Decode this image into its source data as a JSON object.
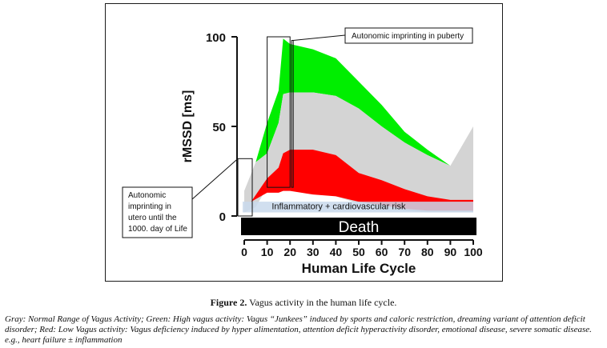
{
  "chart_data": {
    "type": "area",
    "ylabel": "rMSSD [ms]",
    "xlabel": "Human Life Cycle",
    "xlim": [
      0,
      100
    ],
    "ylim": [
      0,
      100
    ],
    "xticks": [
      0,
      10,
      20,
      30,
      40,
      50,
      60,
      70,
      80,
      90,
      100
    ],
    "yticks": [
      0,
      50,
      100
    ],
    "series": [
      {
        "color": "#00ee00",
        "x": [
          0,
          5,
          10,
          15,
          17,
          20,
          30,
          40,
          50,
          60,
          70,
          80,
          90,
          100
        ],
        "upper": [
          14,
          30,
          52,
          70,
          99,
          96,
          93,
          88,
          75,
          62,
          47,
          37,
          28,
          50
        ],
        "lower": [
          14,
          30,
          35,
          52,
          68,
          69,
          69,
          67,
          60,
          50,
          41,
          34,
          28,
          50
        ]
      },
      {
        "color": "#d4d4d4",
        "x": [
          0,
          5,
          10,
          15,
          17,
          20,
          30,
          40,
          50,
          60,
          70,
          80,
          90,
          100
        ],
        "upper": [
          14,
          30,
          35,
          52,
          68,
          69,
          69,
          67,
          60,
          50,
          41,
          34,
          28,
          50
        ],
        "lower": [
          2,
          5,
          16,
          20,
          26,
          26,
          17,
          11,
          7,
          4,
          3,
          2,
          2,
          2
        ]
      },
      {
        "color": "#ff0000",
        "x": [
          3,
          10,
          15,
          17,
          20,
          30,
          40,
          50,
          60,
          70,
          80,
          90,
          100
        ],
        "upper": [
          8,
          21,
          27,
          35,
          37,
          37,
          34,
          24,
          20,
          15,
          11,
          9,
          9
        ],
        "lower": [
          8,
          13,
          13,
          14,
          14,
          12,
          11,
          8,
          6,
          4,
          3,
          3,
          3
        ]
      }
    ],
    "band": {
      "label": "Inflammatory + cardiovascular risk",
      "color": "#c9d9ec",
      "from": 2,
      "to": 8
    },
    "death_label": "Death",
    "annotations": {
      "puberty": "Autonomic imprinting in puberty",
      "utero_lines": [
        "Autonomic",
        "imprinting in",
        "utero until the",
        "1000. day of Life"
      ]
    }
  },
  "caption": {
    "label": "Figure 2.",
    "text": " Vagus activity in the human life cycle."
  },
  "description": "Gray: Normal Range of Vagus Activity; Green: High vagus activity: Vagus “Junkees” induced by sports and caloric restriction, dreaming variant of attention deficit disorder; Red: Low Vagus activity: Vagus deficiency induced by hyper alimentation, attention deficit hyperactivity disorder, emotional disease, severe somatic disease. e.g., heart failure ± inflammation"
}
